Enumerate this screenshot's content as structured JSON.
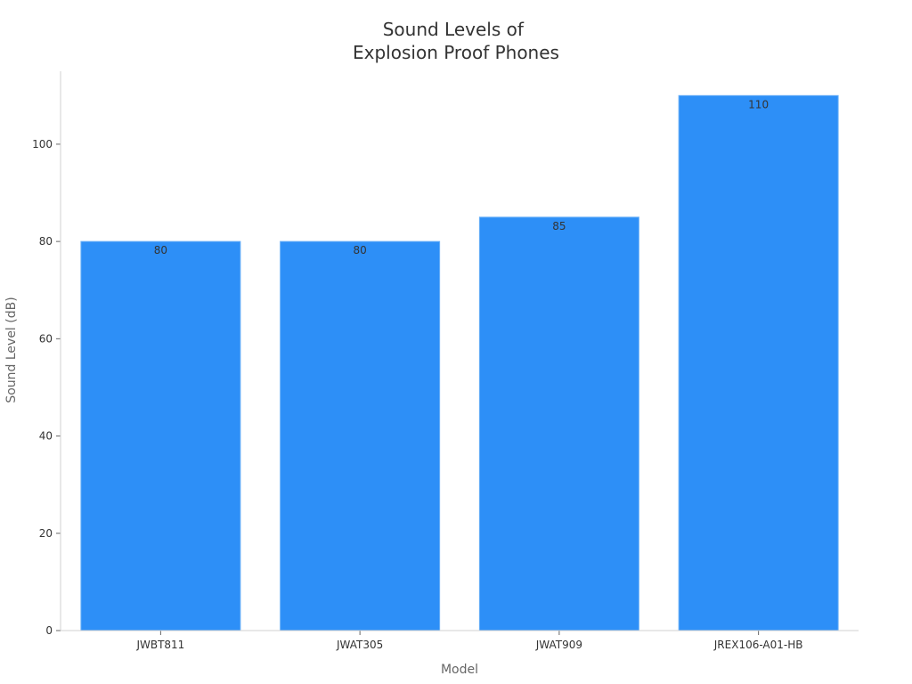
{
  "chart_data": {
    "type": "bar",
    "title_lines": [
      "Sound Levels of",
      "Explosion Proof Phones"
    ],
    "xlabel": "Model",
    "ylabel": "Sound Level (dB)",
    "categories": [
      "JWBT811",
      "JWAT305",
      "JWAT909",
      "JREX106-A01-HB"
    ],
    "values": [
      80,
      80,
      85,
      110
    ],
    "data_labels": [
      "80",
      "80",
      "85",
      "110"
    ],
    "ylim": [
      0,
      115
    ],
    "yticks": [
      0,
      20,
      40,
      60,
      80,
      100
    ],
    "grid": false,
    "legend": "none",
    "colors": {
      "bar": "#2d8ff7",
      "bar_edge": "#6ab0f8"
    }
  }
}
